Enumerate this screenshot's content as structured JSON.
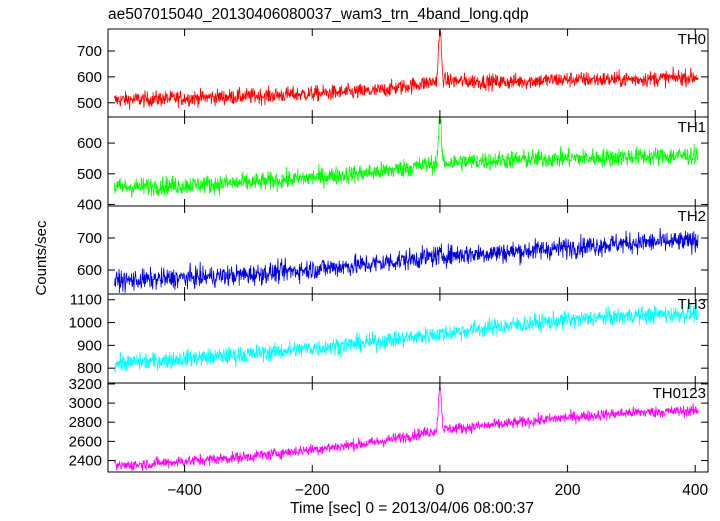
{
  "title": "ae507015040_20130406080037_wam3_trn_4band_long.qdp",
  "ylabel": "Counts/sec",
  "xlabel": "Time [sec] 0 = 2013/04/06 08:00:37",
  "chart_data": {
    "type": "line",
    "title": "ae507015040_20130406080037_wam3_trn_4band_long.qdp",
    "xlabel": "Time [sec] 0 = 2013/04/06 08:00:37",
    "ylabel": "Counts/sec",
    "xlim": [
      -520,
      420
    ],
    "xticks": [
      -400,
      -200,
      0,
      200,
      400
    ],
    "grid": false,
    "panels": [
      {
        "name": "TH0",
        "color": "#ff0000",
        "ylim": [
          445,
          785
        ],
        "yticks": [
          500,
          600,
          700
        ],
        "trend": [
          [
            -510,
            510
          ],
          [
            -300,
            525
          ],
          [
            -100,
            545
          ],
          [
            0,
            585
          ],
          [
            100,
            580
          ],
          [
            200,
            590
          ],
          [
            300,
            590
          ],
          [
            405,
            600
          ]
        ],
        "noise": 28,
        "spikes": [
          [
            0,
            780
          ]
        ]
      },
      {
        "name": "TH1",
        "color": "#00ff00",
        "ylim": [
          395,
          685
        ],
        "yticks": [
          400,
          500,
          600
        ],
        "trend": [
          [
            -510,
            455
          ],
          [
            -300,
            470
          ],
          [
            -100,
            505
          ],
          [
            0,
            535
          ],
          [
            100,
            545
          ],
          [
            200,
            550
          ],
          [
            300,
            555
          ],
          [
            405,
            560
          ]
        ],
        "noise": 28,
        "spikes": [
          [
            0,
            680
          ]
        ]
      },
      {
        "name": "TH2",
        "color": "#0000dd",
        "ylim": [
          525,
          800
        ],
        "yticks": [
          600,
          700
        ],
        "trend": [
          [
            -510,
            565
          ],
          [
            -300,
            585
          ],
          [
            -100,
            620
          ],
          [
            0,
            645
          ],
          [
            100,
            655
          ],
          [
            200,
            670
          ],
          [
            300,
            685
          ],
          [
            405,
            690
          ]
        ],
        "noise": 30,
        "spikes": []
      },
      {
        "name": "TH3",
        "color": "#00ffff",
        "ylim": [
          735,
          1125
        ],
        "yticks": [
          800,
          900,
          1000,
          1100
        ],
        "trend": [
          [
            -510,
            820
          ],
          [
            -300,
            860
          ],
          [
            -100,
            915
          ],
          [
            0,
            950
          ],
          [
            100,
            985
          ],
          [
            200,
            1010
          ],
          [
            300,
            1030
          ],
          [
            405,
            1040
          ]
        ],
        "noise": 35,
        "spikes": []
      },
      {
        "name": "TH0123",
        "color": "#ff00ff",
        "ylim": [
          2280,
          3210
        ],
        "yticks": [
          2400,
          2600,
          2800,
          3000,
          3200
        ],
        "trend": [
          [
            -510,
            2340
          ],
          [
            -300,
            2440
          ],
          [
            -100,
            2590
          ],
          [
            0,
            2720
          ],
          [
            100,
            2780
          ],
          [
            200,
            2850
          ],
          [
            300,
            2900
          ],
          [
            405,
            2920
          ]
        ],
        "noise": 55,
        "spikes": [
          [
            0,
            3200
          ]
        ]
      }
    ]
  }
}
